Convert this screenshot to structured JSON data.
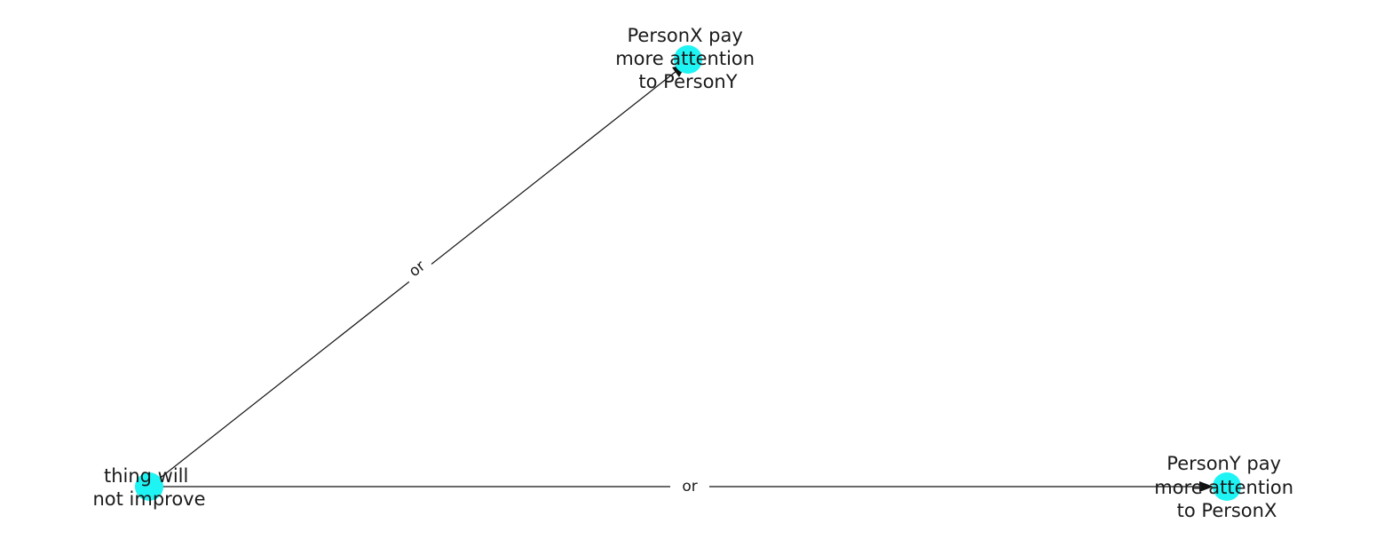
{
  "colors": {
    "node": "#1ff4f4",
    "edge": "#111111",
    "text": "#1a1a1a",
    "background": "#ffffff"
  },
  "nodes": {
    "source": {
      "label_lines": [
        "thing will",
        "not improve"
      ]
    },
    "target_top": {
      "label_lines": [
        "PersonX pay",
        "more attention",
        "to PersonY"
      ]
    },
    "target_right": {
      "label_lines": [
        "PersonY pay",
        "more attention",
        "to PersonX"
      ]
    }
  },
  "edges": [
    {
      "from": "source",
      "to": "target_top",
      "label": "or"
    },
    {
      "from": "source",
      "to": "target_right",
      "label": "or"
    }
  ]
}
